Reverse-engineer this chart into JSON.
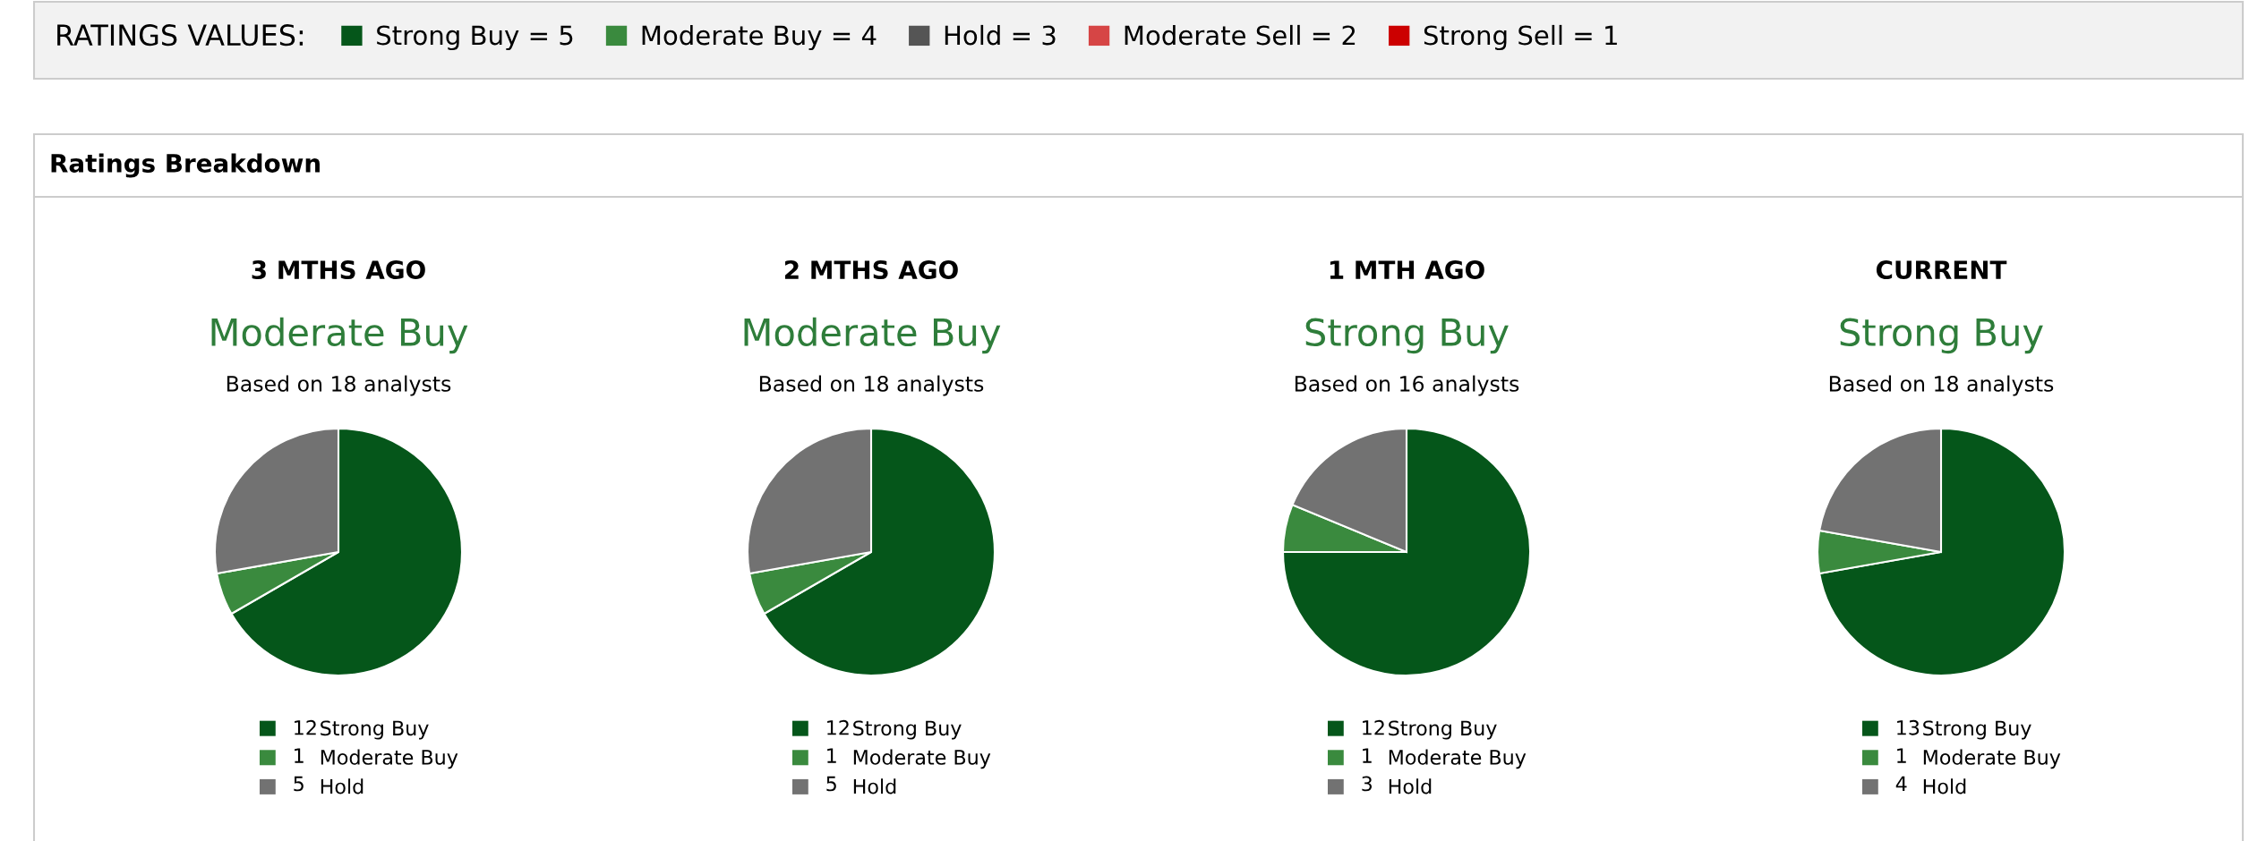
{
  "chart_data": [
    {
      "type": "other",
      "title": "RATINGS VALUES:",
      "categories": [
        "Strong Buy = 5",
        "Moderate Buy = 4",
        "Hold = 3",
        "Moderate Sell = 2",
        "Strong Sell = 1"
      ],
      "colors": [
        "#05561a",
        "#3a8a3e",
        "#555555",
        "#d64545",
        "#cc0000"
      ],
      "annotations": [
        "Ratings Breakdown"
      ]
    },
    {
      "type": "pie",
      "title": "3 MTHS AGO",
      "subtitle": "Moderate Buy",
      "annotations": [
        "Based on 18 analysts"
      ],
      "categories": [
        "Strong Buy",
        "Moderate Buy",
        "Hold"
      ],
      "values": [
        12,
        1,
        5
      ],
      "colors": [
        "#05561a",
        "#3a8a3e",
        "#727272"
      ],
      "legend": "bottom",
      "data_labels": true
    },
    {
      "type": "pie",
      "title": "2 MTHS AGO",
      "subtitle": "Moderate Buy",
      "annotations": [
        "Based on 18 analysts"
      ],
      "categories": [
        "Strong Buy",
        "Moderate Buy",
        "Hold"
      ],
      "values": [
        12,
        1,
        5
      ],
      "colors": [
        "#05561a",
        "#3a8a3e",
        "#727272"
      ],
      "legend": "bottom",
      "data_labels": true
    },
    {
      "type": "pie",
      "title": "1 MTH AGO",
      "subtitle": "Strong Buy",
      "annotations": [
        "Based on 16 analysts"
      ],
      "categories": [
        "Strong Buy",
        "Moderate Buy",
        "Hold"
      ],
      "values": [
        12,
        1,
        3
      ],
      "colors": [
        "#05561a",
        "#3a8a3e",
        "#727272"
      ],
      "legend": "bottom",
      "data_labels": true
    },
    {
      "type": "pie",
      "title": "CURRENT",
      "subtitle": "Strong Buy",
      "annotations": [
        "Based on 18 analysts"
      ],
      "categories": [
        "Strong Buy",
        "Moderate Buy",
        "Hold"
      ],
      "values": [
        13,
        1,
        4
      ],
      "colors": [
        "#05561a",
        "#3a8a3e",
        "#727272"
      ],
      "legend": "bottom",
      "data_labels": true
    }
  ]
}
